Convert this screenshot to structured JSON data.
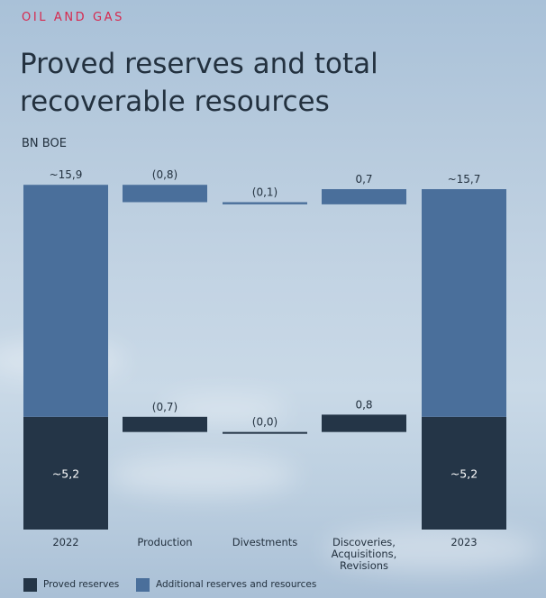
{
  "header": {
    "section": "OIL AND GAS",
    "title": "Proved reserves and total recoverable resources",
    "unit": "BN BOE"
  },
  "colors": {
    "proved": "#243547",
    "additional": "#4a6f9b",
    "accent": "#d6294f"
  },
  "chart_data": {
    "type": "bar",
    "subtype": "waterfall",
    "categories": [
      "2022",
      "Production",
      "Divestments",
      "Discoveries, Acquisitions, Revisions",
      "2023"
    ],
    "category_lines": [
      [
        "2022"
      ],
      [
        "Production"
      ],
      [
        "Divestments"
      ],
      [
        "Discoveries,",
        "Acquisitions,",
        "Revisions"
      ],
      [
        "2023"
      ]
    ],
    "series": [
      {
        "name": "Proved reserves",
        "values": [
          5.2,
          -0.7,
          0.0,
          0.8,
          5.2
        ],
        "labels": [
          "~5,2",
          "(0,7)",
          "(0,0)",
          "0,8",
          "~5,2"
        ]
      },
      {
        "name": "Additional reserves and resources",
        "values": [
          10.7,
          -0.1,
          -0.1,
          -0.1,
          10.5
        ],
        "labels": [
          "~15,9",
          "(0,8)",
          "(0,1)",
          "0,7",
          "~15,7"
        ]
      }
    ],
    "totals": [
      15.9,
      null,
      null,
      null,
      15.7
    ],
    "ylim": [
      0,
      16.2
    ],
    "legend": {
      "position": "bottom-left",
      "items": [
        "Proved reserves",
        "Additional reserves and resources"
      ]
    },
    "grid": false
  }
}
